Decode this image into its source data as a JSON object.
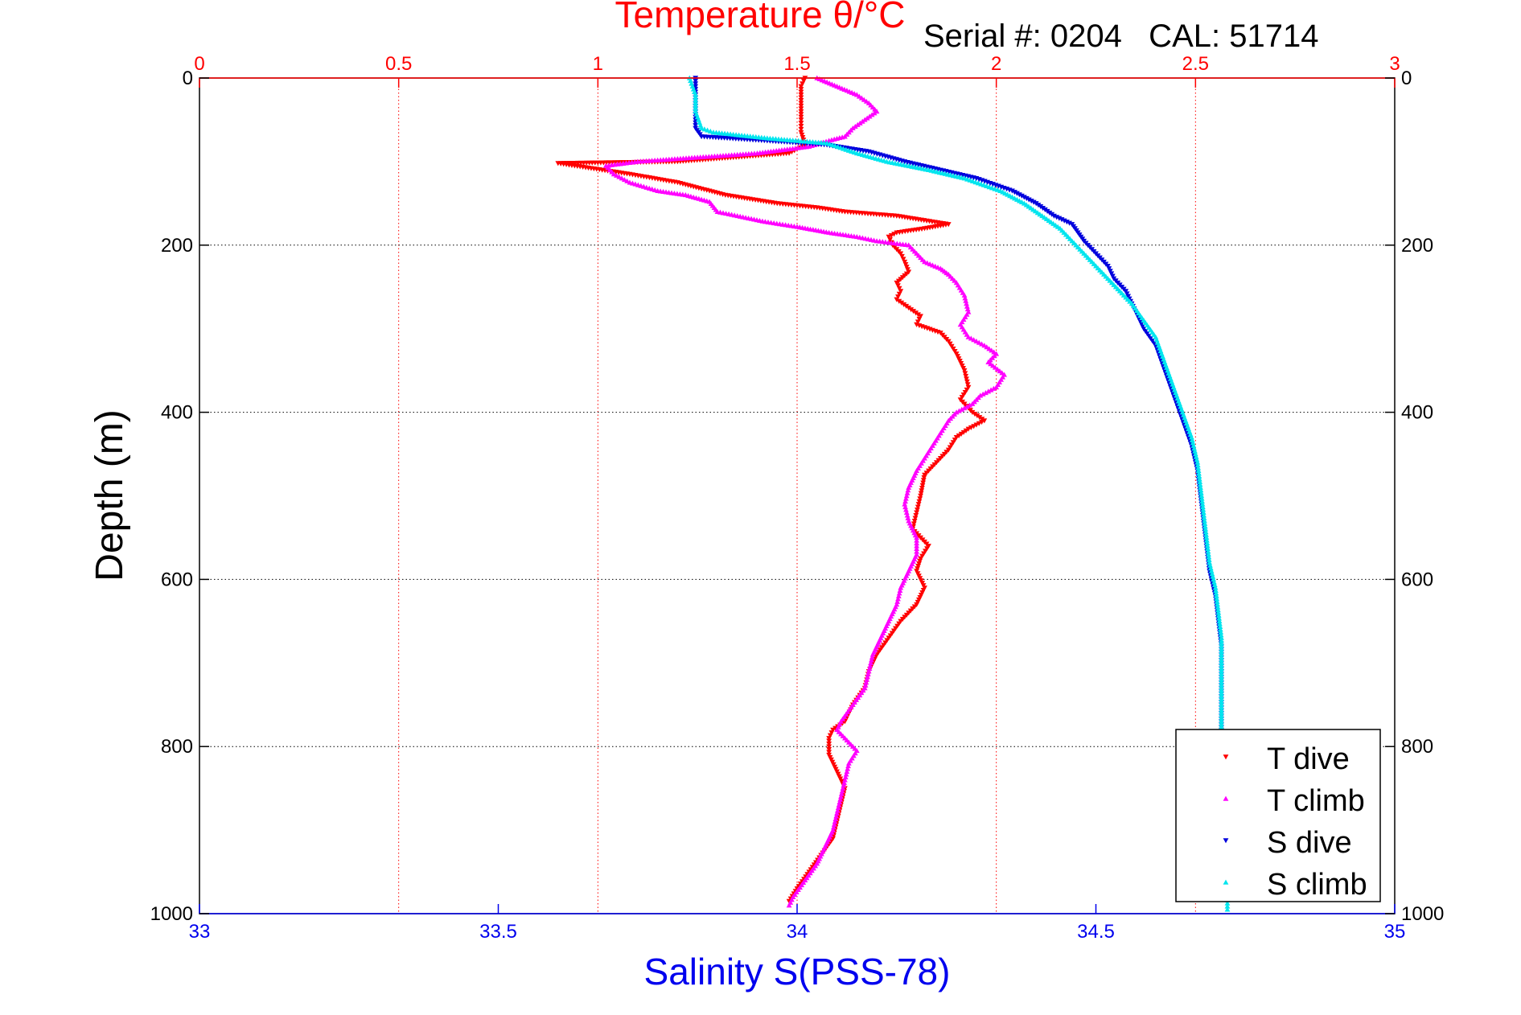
{
  "chart_data": {
    "type": "scatter",
    "title": "Temperature θ/°C",
    "annotation": "Serial #: 0204   CAL: 51714",
    "xlabel_bottom": "Salinity S(PSS-78)",
    "xlabel_top": "Temperature θ/°C",
    "ylabel": "Depth (m)",
    "ylim": [
      0,
      1000
    ],
    "y_reversed": true,
    "xlim_salinity": [
      33,
      35
    ],
    "xlim_temperature": [
      0,
      3
    ],
    "grid": true,
    "legend_position": "bottom-right",
    "bottom_ticks": [
      "33",
      "33.5",
      "34",
      "34.5",
      "35"
    ],
    "top_ticks": [
      "0",
      "0.5",
      "1",
      "1.5",
      "2",
      "2.5",
      "3"
    ],
    "y_ticks": [
      "0",
      "200",
      "400",
      "600",
      "800",
      "1000"
    ],
    "colors": {
      "t_dive": "#ff0000",
      "t_climb": "#ff00ff",
      "s_dive": "#0000dd",
      "s_climb": "#00e5ee",
      "temperature_axis": "#ff0000",
      "salinity_axis": "#0000ee"
    },
    "series": [
      {
        "name": "T dive",
        "axis": "temperature",
        "points": [
          [
            1.52,
            0
          ],
          [
            1.51,
            10
          ],
          [
            1.51,
            30
          ],
          [
            1.51,
            50
          ],
          [
            1.51,
            65
          ],
          [
            1.52,
            80
          ],
          [
            1.48,
            90
          ],
          [
            1.2,
            100
          ],
          [
            0.9,
            102
          ],
          [
            1.08,
            115
          ],
          [
            1.2,
            125
          ],
          [
            1.32,
            140
          ],
          [
            1.45,
            150
          ],
          [
            1.55,
            155
          ],
          [
            1.62,
            160
          ],
          [
            1.75,
            165
          ],
          [
            1.88,
            175
          ],
          [
            1.82,
            180
          ],
          [
            1.75,
            185
          ],
          [
            1.73,
            190
          ],
          [
            1.74,
            200
          ],
          [
            1.76,
            210
          ],
          [
            1.77,
            220
          ],
          [
            1.78,
            232
          ],
          [
            1.75,
            245
          ],
          [
            1.76,
            255
          ],
          [
            1.75,
            265
          ],
          [
            1.78,
            275
          ],
          [
            1.81,
            285
          ],
          [
            1.8,
            295
          ],
          [
            1.86,
            305
          ],
          [
            1.88,
            315
          ],
          [
            1.9,
            330
          ],
          [
            1.92,
            350
          ],
          [
            1.93,
            370
          ],
          [
            1.91,
            385
          ],
          [
            1.94,
            400
          ],
          [
            1.97,
            410
          ],
          [
            1.93,
            420
          ],
          [
            1.9,
            430
          ],
          [
            1.88,
            445
          ],
          [
            1.85,
            460
          ],
          [
            1.82,
            475
          ],
          [
            1.81,
            500
          ],
          [
            1.8,
            520
          ],
          [
            1.79,
            540
          ],
          [
            1.83,
            560
          ],
          [
            1.81,
            575
          ],
          [
            1.8,
            590
          ],
          [
            1.82,
            610
          ],
          [
            1.8,
            630
          ],
          [
            1.76,
            650
          ],
          [
            1.73,
            670
          ],
          [
            1.7,
            690
          ],
          [
            1.68,
            710
          ],
          [
            1.67,
            730
          ],
          [
            1.64,
            750
          ],
          [
            1.62,
            770
          ],
          [
            1.59,
            780
          ],
          [
            1.58,
            790
          ],
          [
            1.58,
            810
          ],
          [
            1.6,
            830
          ],
          [
            1.62,
            850
          ],
          [
            1.61,
            870
          ],
          [
            1.6,
            890
          ],
          [
            1.59,
            910
          ],
          [
            1.56,
            930
          ],
          [
            1.53,
            950
          ],
          [
            1.5,
            970
          ],
          [
            1.48,
            985
          ]
        ]
      },
      {
        "name": "T climb",
        "axis": "temperature",
        "points": [
          [
            1.55,
            0
          ],
          [
            1.6,
            10
          ],
          [
            1.65,
            20
          ],
          [
            1.68,
            30
          ],
          [
            1.7,
            40
          ],
          [
            1.67,
            50
          ],
          [
            1.64,
            60
          ],
          [
            1.62,
            70
          ],
          [
            1.58,
            75
          ],
          [
            1.53,
            82
          ],
          [
            1.4,
            90
          ],
          [
            1.25,
            95
          ],
          [
            1.1,
            100
          ],
          [
            1.02,
            105
          ],
          [
            1.04,
            115
          ],
          [
            1.08,
            125
          ],
          [
            1.15,
            135
          ],
          [
            1.22,
            140
          ],
          [
            1.28,
            148
          ],
          [
            1.3,
            160
          ],
          [
            1.35,
            165
          ],
          [
            1.42,
            172
          ],
          [
            1.5,
            178
          ],
          [
            1.58,
            185
          ],
          [
            1.65,
            190
          ],
          [
            1.7,
            195
          ],
          [
            1.78,
            200
          ],
          [
            1.8,
            210
          ],
          [
            1.82,
            220
          ],
          [
            1.86,
            228
          ],
          [
            1.88,
            235
          ],
          [
            1.9,
            245
          ],
          [
            1.92,
            260
          ],
          [
            1.93,
            280
          ],
          [
            1.91,
            295
          ],
          [
            1.93,
            310
          ],
          [
            1.97,
            320
          ],
          [
            2.0,
            330
          ],
          [
            1.98,
            340
          ],
          [
            2.02,
            355
          ],
          [
            2.0,
            370
          ],
          [
            1.96,
            380
          ],
          [
            1.94,
            390
          ],
          [
            1.9,
            400
          ],
          [
            1.88,
            410
          ],
          [
            1.86,
            425
          ],
          [
            1.84,
            440
          ],
          [
            1.82,
            455
          ],
          [
            1.8,
            470
          ],
          [
            1.78,
            490
          ],
          [
            1.77,
            510
          ],
          [
            1.78,
            530
          ],
          [
            1.8,
            550
          ],
          [
            1.8,
            570
          ],
          [
            1.78,
            590
          ],
          [
            1.76,
            610
          ],
          [
            1.75,
            630
          ],
          [
            1.73,
            650
          ],
          [
            1.71,
            670
          ],
          [
            1.69,
            690
          ],
          [
            1.68,
            710
          ],
          [
            1.67,
            730
          ],
          [
            1.64,
            750
          ],
          [
            1.61,
            770
          ],
          [
            1.6,
            780
          ],
          [
            1.62,
            790
          ],
          [
            1.65,
            805
          ],
          [
            1.63,
            820
          ],
          [
            1.62,
            840
          ],
          [
            1.61,
            860
          ],
          [
            1.6,
            880
          ],
          [
            1.59,
            900
          ],
          [
            1.57,
            920
          ],
          [
            1.55,
            940
          ],
          [
            1.52,
            960
          ],
          [
            1.49,
            980
          ],
          [
            1.48,
            990
          ]
        ]
      },
      {
        "name": "S dive",
        "axis": "salinity",
        "points": [
          [
            33.83,
            0
          ],
          [
            33.83,
            20
          ],
          [
            33.83,
            40
          ],
          [
            33.83,
            60
          ],
          [
            33.84,
            70
          ],
          [
            33.95,
            75
          ],
          [
            34.05,
            80
          ],
          [
            34.12,
            88
          ],
          [
            34.18,
            100
          ],
          [
            34.24,
            110
          ],
          [
            34.3,
            120
          ],
          [
            34.36,
            135
          ],
          [
            34.4,
            150
          ],
          [
            34.43,
            165
          ],
          [
            34.46,
            175
          ],
          [
            34.47,
            185
          ],
          [
            34.48,
            195
          ],
          [
            34.5,
            210
          ],
          [
            34.52,
            225
          ],
          [
            34.53,
            240
          ],
          [
            34.55,
            255
          ],
          [
            34.56,
            270
          ],
          [
            34.57,
            285
          ],
          [
            34.58,
            300
          ],
          [
            34.6,
            320
          ],
          [
            34.61,
            340
          ],
          [
            34.62,
            360
          ],
          [
            34.63,
            380
          ],
          [
            34.64,
            400
          ],
          [
            34.65,
            420
          ],
          [
            34.66,
            440
          ],
          [
            34.67,
            470
          ],
          [
            34.675,
            500
          ],
          [
            34.68,
            530
          ],
          [
            34.685,
            560
          ],
          [
            34.69,
            590
          ],
          [
            34.7,
            620
          ],
          [
            34.705,
            650
          ],
          [
            34.71,
            680
          ],
          [
            34.71,
            710
          ],
          [
            34.71,
            740
          ],
          [
            34.71,
            770
          ],
          [
            34.71,
            790
          ]
        ]
      },
      {
        "name": "S climb",
        "axis": "salinity",
        "points": [
          [
            33.82,
            0
          ],
          [
            33.83,
            20
          ],
          [
            33.83,
            40
          ],
          [
            33.84,
            60
          ],
          [
            33.86,
            65
          ],
          [
            33.95,
            72
          ],
          [
            34.05,
            78
          ],
          [
            34.1,
            90
          ],
          [
            34.15,
            100
          ],
          [
            34.22,
            110
          ],
          [
            34.28,
            120
          ],
          [
            34.34,
            135
          ],
          [
            34.38,
            150
          ],
          [
            34.41,
            165
          ],
          [
            34.44,
            180
          ],
          [
            34.46,
            195
          ],
          [
            34.48,
            210
          ],
          [
            34.5,
            225
          ],
          [
            34.52,
            240
          ],
          [
            34.54,
            255
          ],
          [
            34.56,
            270
          ],
          [
            34.58,
            290
          ],
          [
            34.6,
            310
          ],
          [
            34.61,
            330
          ],
          [
            34.62,
            350
          ],
          [
            34.63,
            370
          ],
          [
            34.64,
            390
          ],
          [
            34.65,
            410
          ],
          [
            34.66,
            430
          ],
          [
            34.67,
            460
          ],
          [
            34.675,
            490
          ],
          [
            34.68,
            520
          ],
          [
            34.685,
            550
          ],
          [
            34.69,
            580
          ],
          [
            34.7,
            610
          ],
          [
            34.705,
            640
          ],
          [
            34.71,
            670
          ],
          [
            34.71,
            700
          ],
          [
            34.71,
            730
          ],
          [
            34.71,
            760
          ],
          [
            34.71,
            790
          ],
          [
            34.71,
            830
          ],
          [
            34.715,
            870
          ],
          [
            34.715,
            910
          ],
          [
            34.715,
            950
          ],
          [
            34.72,
            980
          ],
          [
            34.72,
            995
          ]
        ]
      }
    ]
  }
}
